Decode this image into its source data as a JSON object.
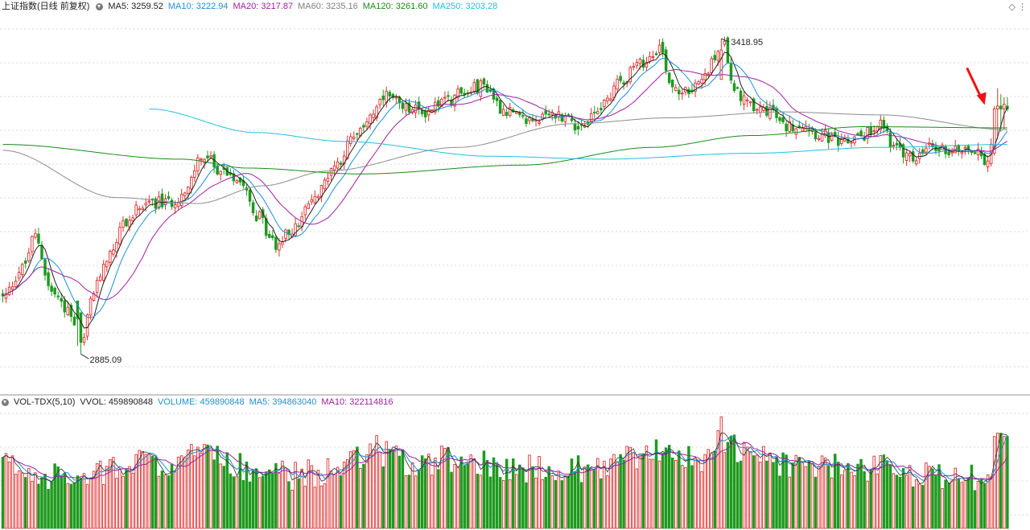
{
  "kline_legend": {
    "title": "上证指数(日线 前复权)",
    "items": [
      {
        "label": "MA5: 3259.52",
        "color": "#222222"
      },
      {
        "label": "MA10: 3222.94",
        "color": "#1e8fd8"
      },
      {
        "label": "MA20: 3217.87",
        "color": "#a020a0"
      },
      {
        "label": "MA60: 3235.16",
        "color": "#808080"
      },
      {
        "label": "MA120: 3261.60",
        "color": "#1a8a1a"
      },
      {
        "label": "MA250: 3203.28",
        "color": "#22c0d8"
      }
    ],
    "corner_icons": [
      "diamond-icon",
      "menu-icon"
    ]
  },
  "volume_legend": {
    "title": "VOL-TDX(5,10)",
    "items": [
      {
        "label": "VVOL: 459890848",
        "color": "#222222"
      },
      {
        "label": "VOLUME: 459890848",
        "color": "#1e8fd8"
      },
      {
        "label": "MA5: 394863040",
        "color": "#1e8fd8"
      },
      {
        "label": "MA10: 322114816",
        "color": "#a020a0"
      }
    ]
  },
  "colors": {
    "up": "#e03030",
    "down": "#1e9a1e",
    "grid": "#d8d8d8"
  },
  "chart_data": {
    "type": "candlestick",
    "ylim": [
      2820,
      3460
    ],
    "annotations": [
      {
        "text": "3418.95",
        "kind": "max",
        "index": 221
      },
      {
        "text": "2885.09",
        "kind": "min",
        "index": 24
      },
      {
        "kind": "arrow",
        "index": 305
      }
    ],
    "anchors": [
      [
        0,
        2980,
        20
      ],
      [
        6,
        3030,
        18
      ],
      [
        10,
        3085,
        18
      ],
      [
        15,
        2990,
        16
      ],
      [
        20,
        2960,
        16
      ],
      [
        24,
        2895,
        15
      ],
      [
        28,
        2990,
        17
      ],
      [
        32,
        3050,
        17
      ],
      [
        38,
        3110,
        18
      ],
      [
        44,
        3145,
        20
      ],
      [
        50,
        3140,
        19
      ],
      [
        56,
        3155,
        21
      ],
      [
        61,
        3220,
        23
      ],
      [
        68,
        3195,
        20
      ],
      [
        74,
        3180,
        19
      ],
      [
        78,
        3120,
        18
      ],
      [
        84,
        3070,
        17
      ],
      [
        90,
        3100,
        16
      ],
      [
        96,
        3150,
        17
      ],
      [
        102,
        3205,
        18
      ],
      [
        108,
        3250,
        20
      ],
      [
        114,
        3295,
        24
      ],
      [
        118,
        3320,
        23
      ],
      [
        124,
        3300,
        20
      ],
      [
        130,
        3295,
        19
      ],
      [
        136,
        3315,
        21
      ],
      [
        142,
        3330,
        22
      ],
      [
        148,
        3340,
        20
      ],
      [
        154,
        3300,
        19
      ],
      [
        160,
        3280,
        18
      ],
      [
        166,
        3285,
        18
      ],
      [
        172,
        3290,
        18
      ],
      [
        178,
        3270,
        18
      ],
      [
        184,
        3305,
        19
      ],
      [
        190,
        3350,
        21
      ],
      [
        196,
        3375,
        22
      ],
      [
        202,
        3405,
        24
      ],
      [
        206,
        3340,
        22
      ],
      [
        210,
        3330,
        21
      ],
      [
        214,
        3340,
        21
      ],
      [
        218,
        3375,
        23
      ],
      [
        221,
        3415,
        27
      ],
      [
        226,
        3325,
        24
      ],
      [
        232,
        3300,
        22
      ],
      [
        236,
        3300,
        21
      ],
      [
        240,
        3270,
        20
      ],
      [
        246,
        3275,
        19
      ],
      [
        252,
        3255,
        19
      ],
      [
        258,
        3240,
        18
      ],
      [
        264,
        3255,
        18
      ],
      [
        270,
        3275,
        19
      ],
      [
        275,
        3230,
        18
      ],
      [
        280,
        3215,
        17
      ],
      [
        286,
        3235,
        17
      ],
      [
        292,
        3230,
        16
      ],
      [
        298,
        3235,
        16
      ],
      [
        302,
        3210,
        16
      ],
      [
        305,
        3255,
        20
      ],
      [
        309,
        3300,
        26
      ]
    ],
    "ma250_anchors": [
      [
        45,
        3300
      ],
      [
        78,
        3260
      ],
      [
        105,
        3245
      ],
      [
        150,
        3220
      ],
      [
        185,
        3215
      ],
      [
        230,
        3225
      ],
      [
        270,
        3235
      ],
      [
        309,
        3240
      ]
    ],
    "ma120_anchors": [
      [
        0,
        3240
      ],
      [
        55,
        3215
      ],
      [
        75,
        3200
      ],
      [
        110,
        3190
      ],
      [
        160,
        3205
      ],
      [
        200,
        3235
      ],
      [
        230,
        3255
      ],
      [
        265,
        3270
      ],
      [
        309,
        3268
      ]
    ],
    "ma60_anchors": [
      [
        0,
        3230
      ],
      [
        35,
        3150
      ],
      [
        60,
        3140
      ],
      [
        80,
        3170
      ],
      [
        100,
        3195
      ],
      [
        140,
        3235
      ],
      [
        175,
        3275
      ],
      [
        205,
        3285
      ],
      [
        240,
        3295
      ],
      [
        270,
        3290
      ],
      [
        309,
        3265
      ]
    ]
  }
}
